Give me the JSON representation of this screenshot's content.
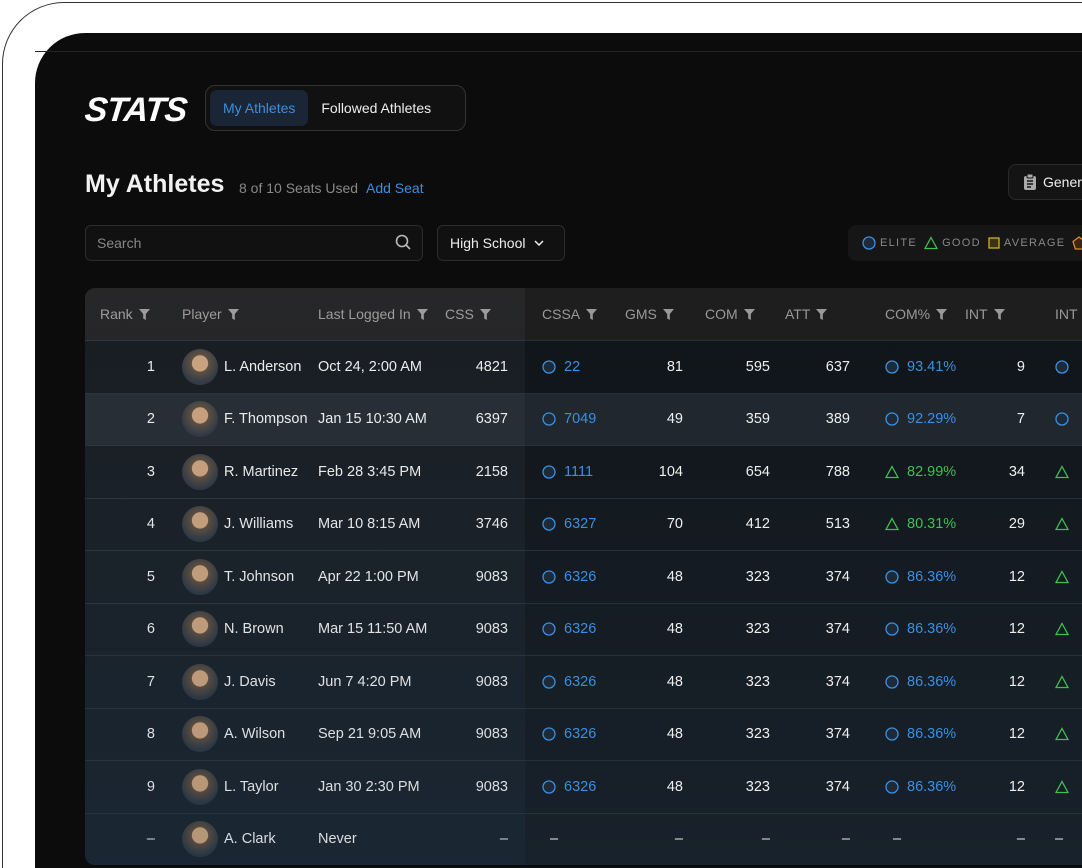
{
  "app": {
    "logo": "STATS",
    "tabs": [
      {
        "label": "My Athletes",
        "active": true
      },
      {
        "label": "Followed Athletes",
        "active": false
      }
    ]
  },
  "header": {
    "title": "My Athletes",
    "seats": "8 of 10 Seats Used",
    "add_seat": "Add Seat",
    "generate_label": "Gener"
  },
  "filters": {
    "search_placeholder": "Search",
    "level": "High School"
  },
  "legend": [
    {
      "label": "ELITE",
      "icon": "circle",
      "color": "#3b8fe0"
    },
    {
      "label": "GOOD",
      "icon": "triangle",
      "color": "#3fbf4f"
    },
    {
      "label": "AVERAGE",
      "icon": "square",
      "color": "#c8b420"
    },
    {
      "label": "",
      "icon": "pentagon",
      "color": "#e08a20"
    }
  ],
  "columns": [
    "Rank",
    "Player",
    "Last Logged In",
    "CSS",
    "CSSA",
    "GMS",
    "COM",
    "ATT",
    "COM%",
    "INT",
    "INT"
  ],
  "rows": [
    {
      "rank": "1",
      "player": "L. Anderson",
      "last": "Oct 24, 2:00 AM",
      "css": "4821",
      "cssa": "22",
      "cssa_tier": "elite",
      "gms": "81",
      "com": "595",
      "att": "637",
      "comp": "93.41%",
      "comp_tier": "elite",
      "int": "9",
      "int2_tier": "elite"
    },
    {
      "rank": "2",
      "player": "F. Thompson",
      "last": "Jan 15 10:30 AM",
      "css": "6397",
      "cssa": "7049",
      "cssa_tier": "elite",
      "gms": "49",
      "com": "359",
      "att": "389",
      "comp": "92.29%",
      "comp_tier": "elite",
      "int": "7",
      "int2_tier": "elite"
    },
    {
      "rank": "3",
      "player": "R. Martinez",
      "last": "Feb 28 3:45 PM",
      "css": "2158",
      "cssa": "1111",
      "cssa_tier": "elite",
      "gms": "104",
      "com": "654",
      "att": "788",
      "comp": "82.99%",
      "comp_tier": "good",
      "int": "34",
      "int2_tier": "good"
    },
    {
      "rank": "4",
      "player": "J. Williams",
      "last": "Mar 10 8:15 AM",
      "css": "3746",
      "cssa": "6327",
      "cssa_tier": "elite",
      "gms": "70",
      "com": "412",
      "att": "513",
      "comp": "80.31%",
      "comp_tier": "good",
      "int": "29",
      "int2_tier": "good"
    },
    {
      "rank": "5",
      "player": "T. Johnson",
      "last": "Apr 22 1:00 PM",
      "css": "9083",
      "cssa": "6326",
      "cssa_tier": "elite",
      "gms": "48",
      "com": "323",
      "att": "374",
      "comp": "86.36%",
      "comp_tier": "elite",
      "int": "12",
      "int2_tier": "good"
    },
    {
      "rank": "6",
      "player": "N. Brown",
      "last": "Mar 15 11:50 AM",
      "css": "9083",
      "cssa": "6326",
      "cssa_tier": "elite",
      "gms": "48",
      "com": "323",
      "att": "374",
      "comp": "86.36%",
      "comp_tier": "elite",
      "int": "12",
      "int2_tier": "good"
    },
    {
      "rank": "7",
      "player": "J. Davis",
      "last": "Jun 7 4:20 PM",
      "css": "9083",
      "cssa": "6326",
      "cssa_tier": "elite",
      "gms": "48",
      "com": "323",
      "att": "374",
      "comp": "86.36%",
      "comp_tier": "elite",
      "int": "12",
      "int2_tier": "good"
    },
    {
      "rank": "8",
      "player": "A. Wilson",
      "last": "Sep 21 9:05 AM",
      "css": "9083",
      "cssa": "6326",
      "cssa_tier": "elite",
      "gms": "48",
      "com": "323",
      "att": "374",
      "comp": "86.36%",
      "comp_tier": "elite",
      "int": "12",
      "int2_tier": "good"
    },
    {
      "rank": "9",
      "player": "L. Taylor",
      "last": "Jan 30 2:30 PM",
      "css": "9083",
      "cssa": "6326",
      "cssa_tier": "elite",
      "gms": "48",
      "com": "323",
      "att": "374",
      "comp": "86.36%",
      "comp_tier": "elite",
      "int": "12",
      "int2_tier": "good"
    },
    {
      "rank": "–",
      "player": "A. Clark",
      "last": "Never",
      "css": "–",
      "cssa": "–",
      "cssa_tier": "",
      "gms": "–",
      "com": "–",
      "att": "–",
      "comp": "–",
      "comp_tier": "",
      "int": "–",
      "int2_tier": "",
      "int2": "–"
    }
  ],
  "highlighted_row": 2
}
